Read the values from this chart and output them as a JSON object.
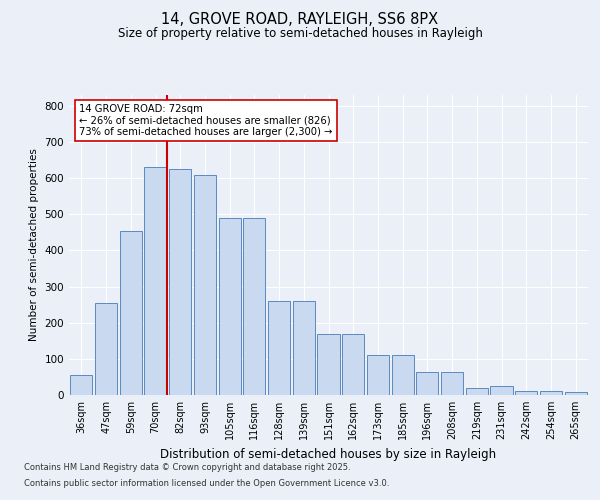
{
  "title1": "14, GROVE ROAD, RAYLEIGH, SS6 8PX",
  "title2": "Size of property relative to semi-detached houses in Rayleigh",
  "xlabel": "Distribution of semi-detached houses by size in Rayleigh",
  "ylabel": "Number of semi-detached properties",
  "categories": [
    "36sqm",
    "47sqm",
    "59sqm",
    "70sqm",
    "82sqm",
    "93sqm",
    "105sqm",
    "116sqm",
    "128sqm",
    "139sqm",
    "151sqm",
    "162sqm",
    "173sqm",
    "185sqm",
    "196sqm",
    "208sqm",
    "219sqm",
    "231sqm",
    "242sqm",
    "254sqm",
    "265sqm"
  ],
  "bar_heights": [
    55,
    255,
    455,
    630,
    625,
    610,
    490,
    490,
    260,
    260,
    170,
    170,
    110,
    110,
    65,
    65,
    20,
    25,
    10,
    10,
    8
  ],
  "bar_color": "#c9d9ef",
  "bar_edge_color": "#5b8abf",
  "vline_x": 3.45,
  "vline_color": "#cc0000",
  "annotation_text": "14 GROVE ROAD: 72sqm\n← 26% of semi-detached houses are smaller (826)\n73% of semi-detached houses are larger (2,300) →",
  "ylim": [
    0,
    830
  ],
  "yticks": [
    0,
    100,
    200,
    300,
    400,
    500,
    600,
    700,
    800
  ],
  "footer1": "Contains HM Land Registry data © Crown copyright and database right 2025.",
  "footer2": "Contains public sector information licensed under the Open Government Licence v3.0.",
  "bg_color": "#eaeff8",
  "plot_bg_color": "#eaeff8",
  "grid_color": "#ffffff",
  "title1_fontsize": 10.5,
  "title2_fontsize": 8.5,
  "xlabel_fontsize": 8.5,
  "ylabel_fontsize": 7.5,
  "tick_fontsize": 7,
  "footer_fontsize": 6
}
